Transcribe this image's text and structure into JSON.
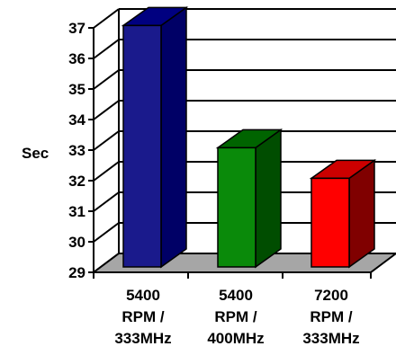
{
  "chart_data": {
    "type": "bar",
    "title": "",
    "xlabel": "",
    "ylabel": "Sec",
    "ylim": [
      29,
      37
    ],
    "yticks": [
      "29",
      "30",
      "31",
      "32",
      "33",
      "34",
      "35",
      "36",
      "37"
    ],
    "grid": true,
    "style": "3d",
    "categories": [
      [
        "5400",
        "RPM /",
        "333MHz"
      ],
      [
        "5400",
        "RPM /",
        "400MHz"
      ],
      [
        "7200",
        "RPM  /",
        "333MHz"
      ]
    ],
    "values": [
      36.9,
      32.9,
      31.9
    ],
    "bar_colors": [
      {
        "front": "#1a1a8c",
        "side": "#000066",
        "top": "#000080"
      },
      {
        "front": "#0a8a0a",
        "side": "#004d00",
        "top": "#006400"
      },
      {
        "front": "#ff0000",
        "side": "#800000",
        "top": "#cc0000"
      }
    ],
    "floor_color": "#a6a6a6"
  }
}
